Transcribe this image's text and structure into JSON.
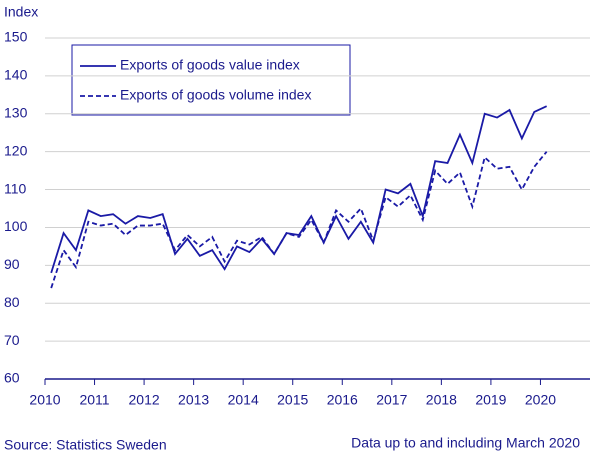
{
  "chart_data": {
    "type": "line",
    "y_label": "Index",
    "x": [
      2010.125,
      2010.375,
      2010.625,
      2010.875,
      2011.125,
      2011.375,
      2011.625,
      2011.875,
      2012.125,
      2012.375,
      2012.625,
      2012.875,
      2013.125,
      2013.375,
      2013.625,
      2013.875,
      2014.125,
      2014.375,
      2014.625,
      2014.875,
      2015.125,
      2015.375,
      2015.625,
      2015.875,
      2016.125,
      2016.375,
      2016.625,
      2016.875,
      2017.125,
      2017.375,
      2017.625,
      2017.875,
      2018.125,
      2018.375,
      2018.625,
      2018.875,
      2019.125,
      2019.375,
      2019.625,
      2019.875,
      2020.125
    ],
    "series": [
      {
        "name": "Exports of goods value index",
        "color": "#1a1aa6",
        "style": "solid",
        "values": [
          88,
          98.5,
          94,
          104.5,
          103,
          103.5,
          101,
          103,
          102.5,
          103.5,
          93,
          97,
          92.5,
          94,
          89,
          95,
          93.5,
          97,
          93,
          98.5,
          98,
          103,
          96,
          103,
          97,
          101.5,
          96,
          110,
          109,
          111.5,
          103,
          117.5,
          117,
          124.5,
          117,
          130,
          129,
          131,
          123.5,
          130.5,
          132
        ]
      },
      {
        "name": "Exports of goods volume index",
        "color": "#1a1aa6",
        "style": "dashed",
        "values": [
          84,
          94,
          89.5,
          101.5,
          100.5,
          101,
          98,
          100.5,
          100.5,
          101,
          94,
          98,
          95,
          97.5,
          91,
          96.5,
          95.5,
          97.5,
          93,
          98.5,
          97.5,
          102,
          96,
          104.5,
          101.5,
          105,
          96.5,
          108,
          105.5,
          108.5,
          102,
          115,
          111.5,
          114.5,
          105.5,
          118.5,
          115.5,
          116,
          110,
          116,
          120
        ]
      }
    ],
    "xlim": [
      2010,
      2021
    ],
    "xticks": [
      2010,
      2011,
      2012,
      2013,
      2014,
      2015,
      2016,
      2017,
      2018,
      2019,
      2020
    ],
    "ylim": [
      60,
      150
    ],
    "yticks": [
      60,
      70,
      80,
      90,
      100,
      110,
      120,
      130,
      140,
      150
    ],
    "grid": true,
    "source": "Source: Statistics Sweden",
    "note": "Data up to and including March 2020"
  }
}
